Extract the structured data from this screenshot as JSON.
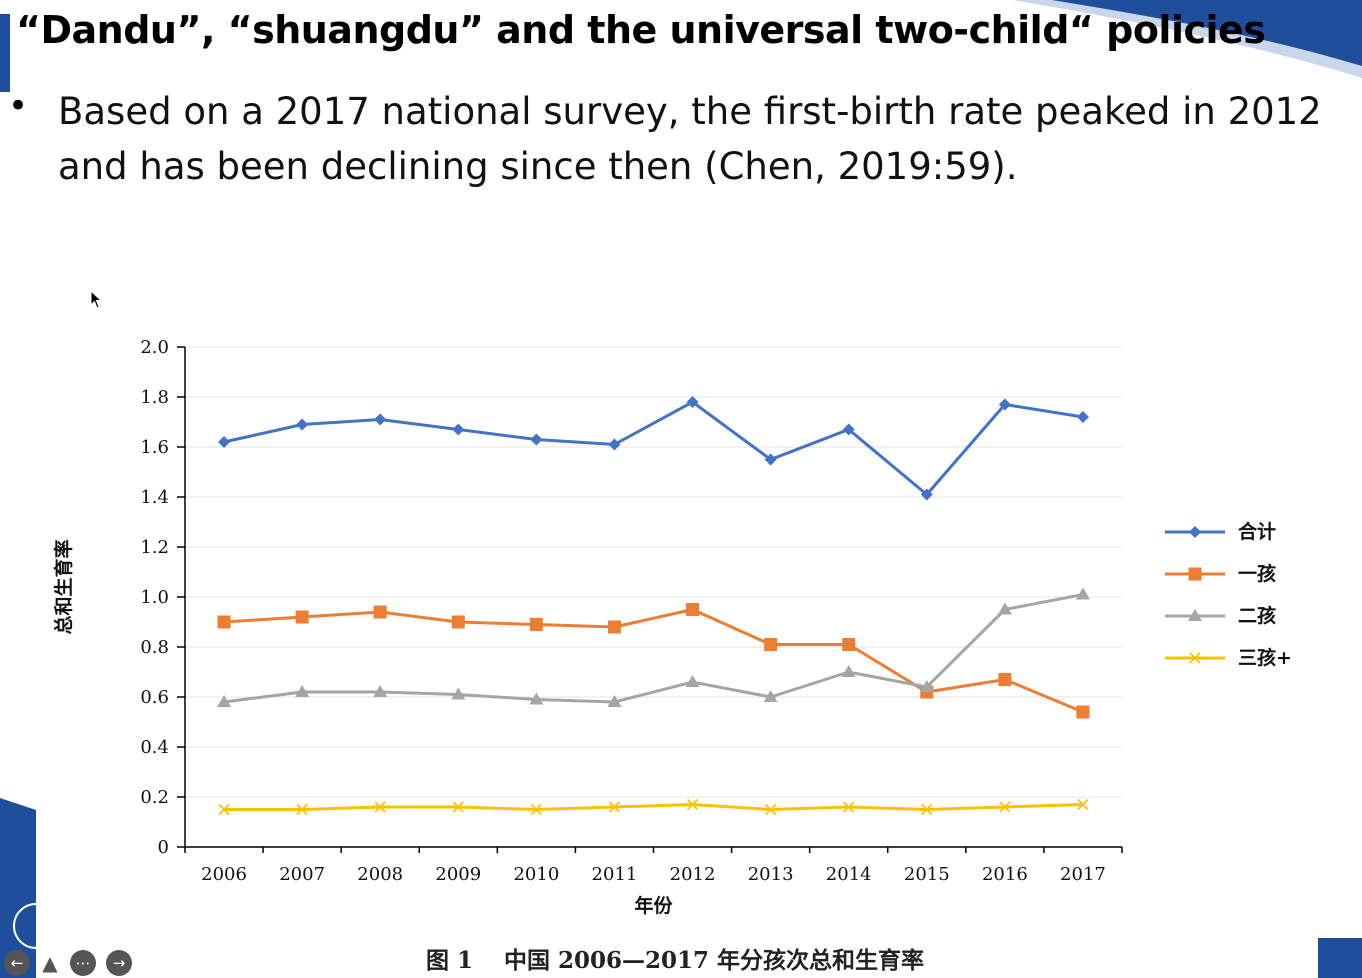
{
  "slide": {
    "title": "“Dandu”, “shuangdu” and the universal two-child“ policies",
    "bullet": "Based on a 2017 national survey, the first-birth rate peaked in 2012 and has been declining since then (Chen, 2019:59)."
  },
  "colors": {
    "accent": "#1f4e9c"
  },
  "chart_data": {
    "type": "line",
    "title": "",
    "caption": "图 1　 中国 2006—2017 年分孩次总和生育率",
    "xlabel": "年份",
    "ylabel": "总和生育率",
    "ylim": [
      0,
      2.0
    ],
    "yticks": [
      "0",
      "0.2",
      "0.4",
      "0.6",
      "0.8",
      "1.0",
      "1.2",
      "1.4",
      "1.6",
      "1.8",
      "2.0"
    ],
    "categories": [
      "2006",
      "2007",
      "2008",
      "2009",
      "2010",
      "2011",
      "2012",
      "2013",
      "2014",
      "2015",
      "2016",
      "2017"
    ],
    "grid": "horizontal",
    "legend": "right",
    "series": [
      {
        "name": "合计",
        "color": "#4472c4",
        "marker": "diamond",
        "values": [
          1.62,
          1.69,
          1.71,
          1.67,
          1.63,
          1.61,
          1.78,
          1.55,
          1.67,
          1.41,
          1.77,
          1.72
        ]
      },
      {
        "name": "一孩",
        "color": "#ed7d31",
        "marker": "square",
        "values": [
          0.9,
          0.92,
          0.94,
          0.9,
          0.89,
          0.88,
          0.95,
          0.81,
          0.81,
          0.62,
          0.67,
          0.54
        ]
      },
      {
        "name": "二孩",
        "color": "#a5a5a5",
        "marker": "triangle",
        "values": [
          0.58,
          0.62,
          0.62,
          0.61,
          0.59,
          0.58,
          0.66,
          0.6,
          0.7,
          0.64,
          0.95,
          1.01
        ]
      },
      {
        "name": "三孩+",
        "color": "#ffc000",
        "marker": "x",
        "values": [
          0.15,
          0.15,
          0.16,
          0.16,
          0.15,
          0.16,
          0.17,
          0.15,
          0.16,
          0.15,
          0.16,
          0.17
        ]
      }
    ]
  },
  "nav": {
    "prev_icon": "arrow-left-icon",
    "pen_icon": "pen-icon",
    "menu_icon": "more-icon",
    "next_icon": "arrow-right-icon"
  }
}
